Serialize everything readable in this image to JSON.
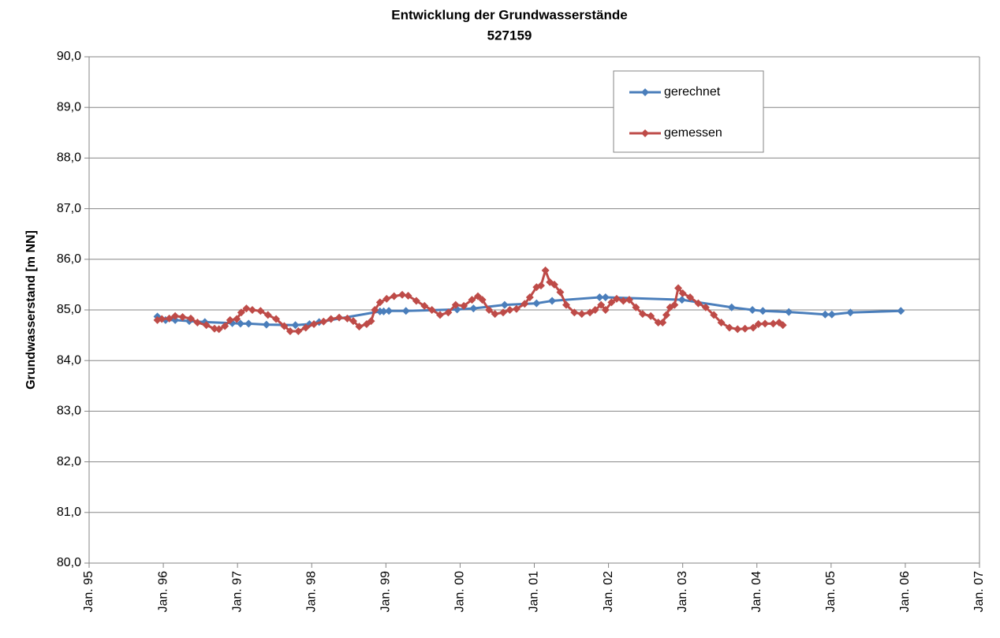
{
  "chart_data": {
    "type": "line",
    "title": "Entwicklung der Grundwasserstände",
    "subtitle": "527159",
    "y_label": "Grundwasserstand [m NN]",
    "xlim": [
      1995,
      2007
    ],
    "xticks": [
      {
        "value": 1995,
        "label": "Jan. 95"
      },
      {
        "value": 1996,
        "label": "Jan. 96"
      },
      {
        "value": 1997,
        "label": "Jan. 97"
      },
      {
        "value": 1998,
        "label": "Jan. 98"
      },
      {
        "value": 1999,
        "label": "Jan. 99"
      },
      {
        "value": 2000,
        "label": "Jan. 00"
      },
      {
        "value": 2001,
        "label": "Jan. 01"
      },
      {
        "value": 2002,
        "label": "Jan. 02"
      },
      {
        "value": 2003,
        "label": "Jan. 03"
      },
      {
        "value": 2004,
        "label": "Jan. 04"
      },
      {
        "value": 2005,
        "label": "Jan. 05"
      },
      {
        "value": 2006,
        "label": "Jan. 06"
      },
      {
        "value": 2007,
        "label": "Jan. 07"
      }
    ],
    "ylim": [
      80,
      90
    ],
    "yticks": [
      {
        "value": 80,
        "label": "80,0"
      },
      {
        "value": 81,
        "label": "81,0"
      },
      {
        "value": 82,
        "label": "82,0"
      },
      {
        "value": 83,
        "label": "83,0"
      },
      {
        "value": 84,
        "label": "84,0"
      },
      {
        "value": 85,
        "label": "85,0"
      },
      {
        "value": 86,
        "label": "86,0"
      },
      {
        "value": 87,
        "label": "87,0"
      },
      {
        "value": 88,
        "label": "88,0"
      },
      {
        "value": 89,
        "label": "89,0"
      },
      {
        "value": 90,
        "label": "90,0"
      }
    ],
    "grid": true,
    "legend": "top-right",
    "series": [
      {
        "name": "gerechnet",
        "color": "#4a7ebb",
        "x": [
          1995.92,
          1996.03,
          1996.16,
          1996.35,
          1996.56,
          1996.93,
          1997.04,
          1997.15,
          1997.39,
          1997.78,
          1997.97,
          1998.1,
          1998.92,
          1998.97,
          1999.04,
          1999.27,
          1999.96,
          2000.18,
          2000.6,
          2001.03,
          2001.24,
          2001.88,
          2001.96,
          2002.99,
          2003.66,
          2003.94,
          2004.08,
          2004.43,
          2004.92,
          2005.01,
          2005.26,
          2005.94
        ],
        "values": [
          84.87,
          84.8,
          84.8,
          84.78,
          84.76,
          84.74,
          84.73,
          84.73,
          84.71,
          84.7,
          84.72,
          84.76,
          84.97,
          84.97,
          84.98,
          84.98,
          85.01,
          85.03,
          85.1,
          85.13,
          85.18,
          85.25,
          85.25,
          85.2,
          85.05,
          85.0,
          84.98,
          84.96,
          84.91,
          84.91,
          84.95,
          84.98
        ]
      },
      {
        "name": "gemessen",
        "color": "#be4b48",
        "x": [
          1995.92,
          1995.98,
          1996.08,
          1996.16,
          1996.26,
          1996.37,
          1996.46,
          1996.58,
          1996.69,
          1996.75,
          1996.83,
          1996.9,
          1996.99,
          1997.05,
          1997.12,
          1997.2,
          1997.31,
          1997.41,
          1997.52,
          1997.63,
          1997.71,
          1997.82,
          1997.92,
          1998.03,
          1998.16,
          1998.26,
          1998.37,
          1998.48,
          1998.56,
          1998.64,
          1998.74,
          1998.8,
          1998.85,
          1998.92,
          1999.01,
          1999.11,
          1999.22,
          1999.3,
          1999.41,
          1999.52,
          1999.62,
          1999.73,
          1999.84,
          1999.94,
          2000.05,
          2000.16,
          2000.24,
          2000.3,
          2000.39,
          2000.47,
          2000.58,
          2000.67,
          2000.76,
          2000.87,
          2000.94,
          2001.03,
          2001.09,
          2001.15,
          2001.21,
          2001.27,
          2001.35,
          2001.43,
          2001.54,
          2001.64,
          2001.75,
          2001.82,
          2001.9,
          2001.96,
          2002.04,
          2002.11,
          2002.2,
          2002.28,
          2002.37,
          2002.46,
          2002.57,
          2002.67,
          2002.73,
          2002.78,
          2002.83,
          2002.89,
          2002.94,
          2003.0,
          2003.1,
          2003.21,
          2003.31,
          2003.42,
          2003.52,
          2003.63,
          2003.74,
          2003.84,
          2003.95,
          2004.02,
          2004.11,
          2004.22,
          2004.3,
          2004.35
        ],
        "values": [
          84.8,
          84.82,
          84.83,
          84.88,
          84.86,
          84.83,
          84.75,
          84.7,
          84.63,
          84.62,
          84.68,
          84.8,
          84.82,
          84.95,
          85.03,
          85.0,
          84.98,
          84.9,
          84.82,
          84.68,
          84.58,
          84.58,
          84.65,
          84.72,
          84.77,
          84.82,
          84.85,
          84.83,
          84.78,
          84.67,
          84.72,
          84.78,
          85.0,
          85.15,
          85.22,
          85.27,
          85.3,
          85.28,
          85.18,
          85.08,
          85.0,
          84.9,
          84.95,
          85.1,
          85.08,
          85.2,
          85.27,
          85.2,
          85.0,
          84.92,
          84.95,
          85.0,
          85.02,
          85.12,
          85.25,
          85.45,
          85.48,
          85.78,
          85.55,
          85.5,
          85.35,
          85.1,
          84.95,
          84.92,
          84.95,
          85.0,
          85.1,
          85.0,
          85.15,
          85.22,
          85.18,
          85.2,
          85.05,
          84.92,
          84.88,
          84.75,
          84.75,
          84.9,
          85.05,
          85.1,
          85.43,
          85.33,
          85.25,
          85.13,
          85.05,
          84.9,
          84.75,
          84.65,
          84.62,
          84.63,
          84.65,
          84.72,
          84.73,
          84.73,
          84.75,
          84.7
        ]
      }
    ]
  }
}
